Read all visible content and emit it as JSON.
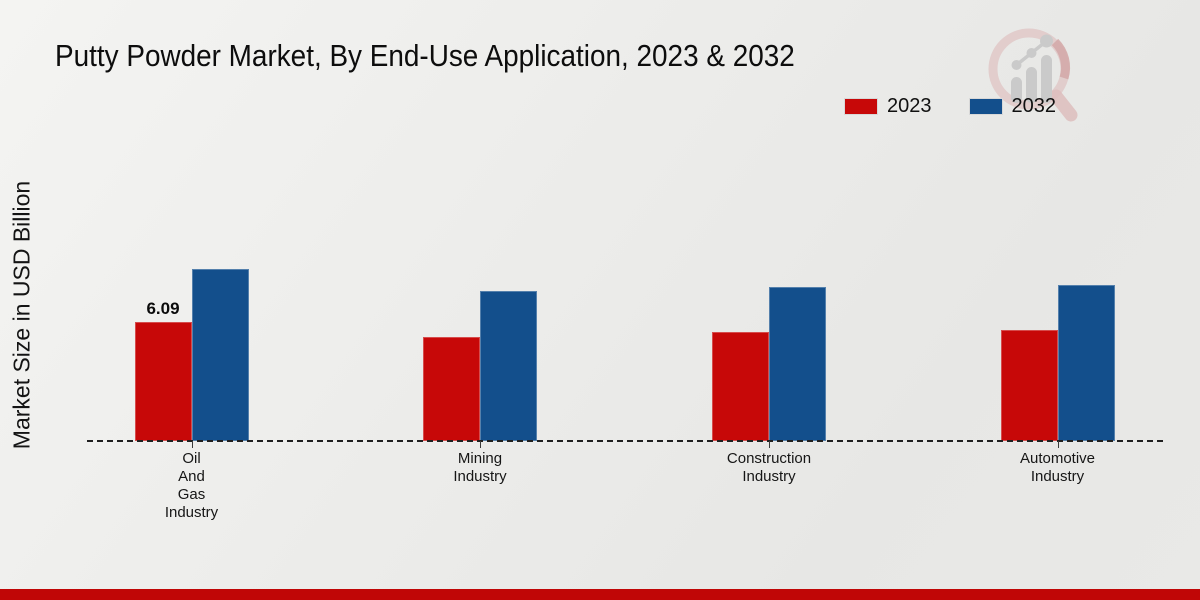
{
  "title": "Putty Powder Market, By End-Use Application, 2023 & 2032",
  "ylabel": "Market Size in USD Billion",
  "footer_band_color": "#c00606",
  "watermark_name": "market-research-magnifier-chart-logo",
  "legend": {
    "items": [
      {
        "label": "2023",
        "color": "#c70808"
      },
      {
        "label": "2032",
        "color": "#134f8c"
      }
    ]
  },
  "chart_data": {
    "type": "bar",
    "title": "Putty Powder Market, By End-Use Application, 2023 & 2032",
    "xlabel": "",
    "ylabel": "Market Size in USD Billion",
    "categories": [
      "Oil And Gas Industry",
      "Mining Industry",
      "Construction Industry",
      "Automotive Industry"
    ],
    "category_label_lines": [
      [
        "Oil",
        "And",
        "Gas",
        "Industry"
      ],
      [
        "Mining",
        "Industry"
      ],
      [
        "Construction",
        "Industry"
      ],
      [
        "Automotive",
        "Industry"
      ]
    ],
    "series": [
      {
        "name": "2023",
        "color": "#c70808",
        "values": [
          6.09,
          5.3,
          5.6,
          5.7
        ],
        "data_labels": [
          "6.09",
          null,
          null,
          null
        ]
      },
      {
        "name": "2032",
        "color": "#134f8c",
        "values": [
          8.8,
          7.7,
          7.9,
          8.0
        ],
        "data_labels": [
          null,
          null,
          null,
          null
        ]
      }
    ],
    "ylim": [
      0,
      10
    ],
    "grid": false,
    "y_axis_ticks_visible": false,
    "baseline_style": "dashed",
    "legend_position": "top-right"
  }
}
